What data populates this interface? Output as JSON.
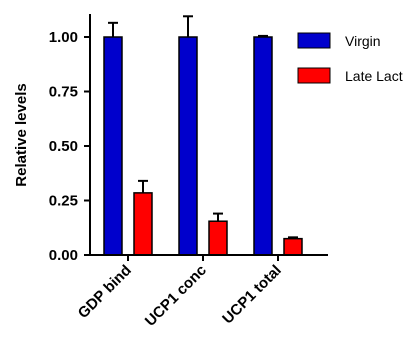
{
  "chart_data": {
    "type": "bar",
    "categories": [
      "GDP bind",
      "UCP1 conc",
      "UCP1 total"
    ],
    "series": [
      {
        "name": "Virgin",
        "color": "#0000cc",
        "values": [
          1.0,
          1.0,
          1.0
        ],
        "error": [
          0.065,
          0.095,
          0.005
        ]
      },
      {
        "name": "Late Lact",
        "color": "#ff0000",
        "values": [
          0.285,
          0.155,
          0.075
        ],
        "error": [
          0.055,
          0.035,
          0.006
        ]
      }
    ],
    "ylabel": "Relative levels",
    "ylim": [
      0,
      1.1
    ],
    "yticks": [
      "0.00",
      "0.25",
      "0.50",
      "0.75",
      "1.00"
    ],
    "grid": false,
    "legend_position": "top-right"
  }
}
